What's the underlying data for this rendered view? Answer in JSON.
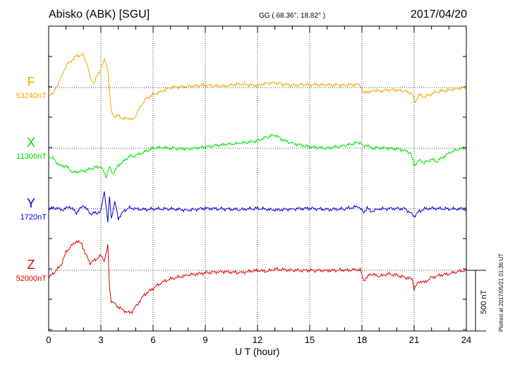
{
  "header": {
    "station": "Abisko (ABK)  [SGU]",
    "coords": "GG ( 68.36°,  18.82° )",
    "date": "2017/04/20"
  },
  "footer": {
    "plotted": "Plotted at 2017/05/21 01:36 UT"
  },
  "scale_bar": {
    "label": "500 nT",
    "value_nT": 500
  },
  "chart_data": {
    "type": "line",
    "xlabel": "U T (hour)",
    "xlim": [
      0,
      24
    ],
    "xticks": [
      0,
      3,
      6,
      9,
      12,
      15,
      18,
      21,
      24
    ],
    "x_tick_labels": [
      "0",
      "3",
      "6",
      "9",
      "12",
      "15",
      "18",
      "21",
      "24"
    ],
    "grid": true,
    "series": [
      {
        "name": "F",
        "baseline_label": "53240nT",
        "baseline_nT": 53240,
        "color": "#f0a800",
        "x": [
          0,
          0.3,
          0.7,
          1.0,
          1.3,
          1.6,
          1.9,
          2.0,
          2.2,
          2.4,
          2.6,
          2.8,
          3.0,
          3.2,
          3.4,
          3.5,
          3.6,
          3.8,
          4.0,
          4.3,
          4.6,
          4.8,
          5.0,
          5.3,
          5.6,
          6.0,
          6.5,
          7,
          8,
          9,
          10,
          11,
          12,
          12.5,
          13,
          13.5,
          14,
          15,
          16,
          17,
          17.9,
          18.1,
          18.3,
          18.5,
          18.7,
          19,
          19.5,
          20,
          20.5,
          20.9,
          21.0,
          21.3,
          21.6,
          22,
          22.5,
          23,
          23.5,
          24
        ],
        "y": [
          -60,
          -40,
          80,
          180,
          220,
          260,
          270,
          260,
          200,
          70,
          40,
          100,
          150,
          230,
          150,
          -50,
          -200,
          -240,
          -230,
          -260,
          -250,
          -270,
          -230,
          -150,
          -90,
          -60,
          -30,
          0,
          10,
          20,
          10,
          30,
          15,
          35,
          40,
          25,
          20,
          25,
          20,
          20,
          25,
          -50,
          -30,
          -40,
          -20,
          -30,
          -20,
          -20,
          -30,
          -50,
          -130,
          -60,
          -80,
          -50,
          -30,
          -20,
          -10,
          0
        ]
      },
      {
        "name": "X",
        "baseline_label": "11300nT",
        "baseline_nT": 11300,
        "color": "#00e000",
        "x": [
          0,
          0.3,
          0.6,
          1.0,
          1.4,
          1.8,
          2.2,
          2.6,
          3.0,
          3.3,
          3.5,
          3.7,
          4.0,
          4.3,
          4.6,
          5.0,
          5.5,
          6.0,
          6.5,
          7,
          8,
          9,
          10,
          11,
          12,
          12.5,
          13,
          13.3,
          13.6,
          14,
          15,
          16,
          17,
          17.9,
          18.1,
          18.3,
          18.5,
          19,
          19.5,
          20,
          20.5,
          20.8,
          21.0,
          21.3,
          21.6,
          22,
          22.3,
          22.6,
          23,
          23.5,
          24
        ],
        "y": [
          -70,
          -90,
          -140,
          -150,
          -200,
          -190,
          -180,
          -160,
          -150,
          -230,
          -160,
          -210,
          -140,
          -110,
          -70,
          -60,
          -30,
          0,
          5,
          0,
          -5,
          10,
          30,
          40,
          60,
          90,
          110,
          80,
          60,
          40,
          10,
          0,
          20,
          50,
          10,
          30,
          0,
          5,
          0,
          -5,
          -20,
          -40,
          -140,
          -100,
          -120,
          -90,
          -110,
          -80,
          -40,
          -10,
          0
        ]
      },
      {
        "name": "Y",
        "baseline_label": "1720nT",
        "baseline_nT": 1720,
        "color": "#0000dd",
        "x": [
          0,
          0.4,
          0.8,
          1.2,
          1.6,
          2.0,
          2.4,
          2.8,
          3.0,
          3.2,
          3.4,
          3.5,
          3.6,
          3.8,
          4.0,
          4.3,
          4.6,
          5.0,
          5.5,
          6,
          7,
          8,
          9,
          10,
          11,
          12,
          13,
          14,
          15,
          16,
          17,
          17.8,
          18.1,
          18.3,
          18.5,
          19,
          20,
          20.5,
          21.0,
          21.3,
          21.6,
          22,
          23,
          24
        ],
        "y": [
          0,
          10,
          -10,
          20,
          -30,
          30,
          -40,
          -30,
          -20,
          150,
          -110,
          100,
          -80,
          60,
          -80,
          -20,
          10,
          0,
          -5,
          0,
          0,
          -10,
          5,
          0,
          -5,
          5,
          -10,
          0,
          5,
          -5,
          0,
          20,
          -30,
          10,
          -20,
          0,
          5,
          0,
          -60,
          -20,
          0,
          5,
          0,
          0
        ]
      },
      {
        "name": "Z",
        "baseline_label": "52000nT",
        "baseline_nT": 52000,
        "color": "#e00000",
        "x": [
          0,
          0.3,
          0.7,
          1.0,
          1.3,
          1.6,
          1.9,
          2.1,
          2.4,
          2.7,
          3.0,
          3.2,
          3.4,
          3.5,
          3.6,
          3.8,
          4.0,
          4.3,
          4.6,
          4.8,
          5.0,
          5.5,
          6.0,
          6.5,
          7,
          8,
          9,
          10,
          11,
          12,
          12.5,
          13,
          14,
          15,
          16,
          17,
          17.9,
          18.1,
          18.3,
          18.5,
          19,
          19.5,
          20,
          20.5,
          20.9,
          21.0,
          21.3,
          21.6,
          22,
          22.5,
          23,
          23.5,
          24
        ],
        "y": [
          -60,
          -20,
          40,
          150,
          200,
          240,
          220,
          140,
          60,
          90,
          120,
          80,
          200,
          -150,
          -250,
          -280,
          -300,
          -330,
          -350,
          -340,
          -300,
          -200,
          -150,
          -100,
          -70,
          -40,
          -20,
          -10,
          -20,
          0,
          -10,
          10,
          0,
          0,
          0,
          0,
          5,
          -80,
          -60,
          -30,
          -50,
          -30,
          -40,
          -60,
          -70,
          -150,
          -90,
          -100,
          -60,
          -40,
          -30,
          -10,
          0
        ]
      }
    ]
  }
}
